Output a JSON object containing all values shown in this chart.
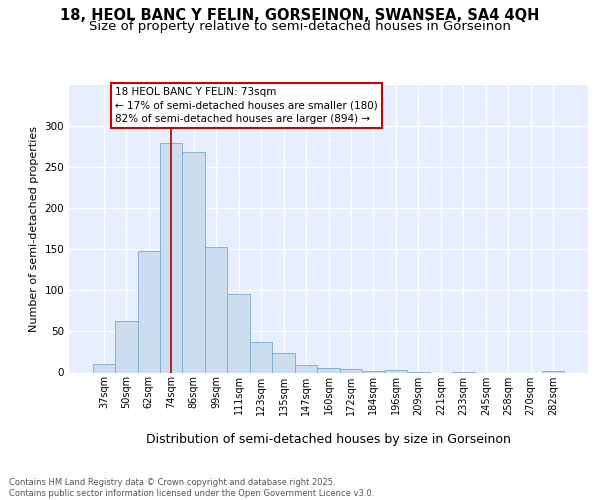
{
  "title1": "18, HEOL BANC Y FELIN, GORSEINON, SWANSEA, SA4 4QH",
  "title2": "Size of property relative to semi-detached houses in Gorseinon",
  "xlabel": "Distribution of semi-detached houses by size in Gorseinon",
  "ylabel": "Number of semi-detached properties",
  "categories": [
    "37sqm",
    "50sqm",
    "62sqm",
    "74sqm",
    "86sqm",
    "99sqm",
    "111sqm",
    "123sqm",
    "135sqm",
    "147sqm",
    "160sqm",
    "172sqm",
    "184sqm",
    "196sqm",
    "209sqm",
    "221sqm",
    "233sqm",
    "245sqm",
    "258sqm",
    "270sqm",
    "282sqm"
  ],
  "values": [
    10,
    63,
    148,
    280,
    268,
    153,
    95,
    37,
    24,
    9,
    5,
    4,
    2,
    3,
    1,
    0,
    1,
    0,
    0,
    0,
    2
  ],
  "bar_color": "#ccddf0",
  "bar_edge_color": "#7aaad0",
  "vline_color": "#aa0000",
  "vline_x": 3.0,
  "annotation_text": "18 HEOL BANC Y FELIN: 73sqm\n← 17% of semi-detached houses are smaller (180)\n82% of semi-detached houses are larger (894) →",
  "annotation_box_facecolor": "#ffffff",
  "annotation_box_edgecolor": "#cc0000",
  "plot_bg_color": "#e6eeff",
  "footer": "Contains HM Land Registry data © Crown copyright and database right 2025.\nContains public sector information licensed under the Open Government Licence v3.0.",
  "ylim": [
    0,
    350
  ],
  "yticks": [
    0,
    50,
    100,
    150,
    200,
    250,
    300
  ],
  "title_fontsize": 10.5,
  "subtitle_fontsize": 9.5,
  "ylabel_fontsize": 8,
  "xlabel_fontsize": 9,
  "tick_fontsize": 7,
  "annotation_fontsize": 7.5,
  "footer_fontsize": 6
}
